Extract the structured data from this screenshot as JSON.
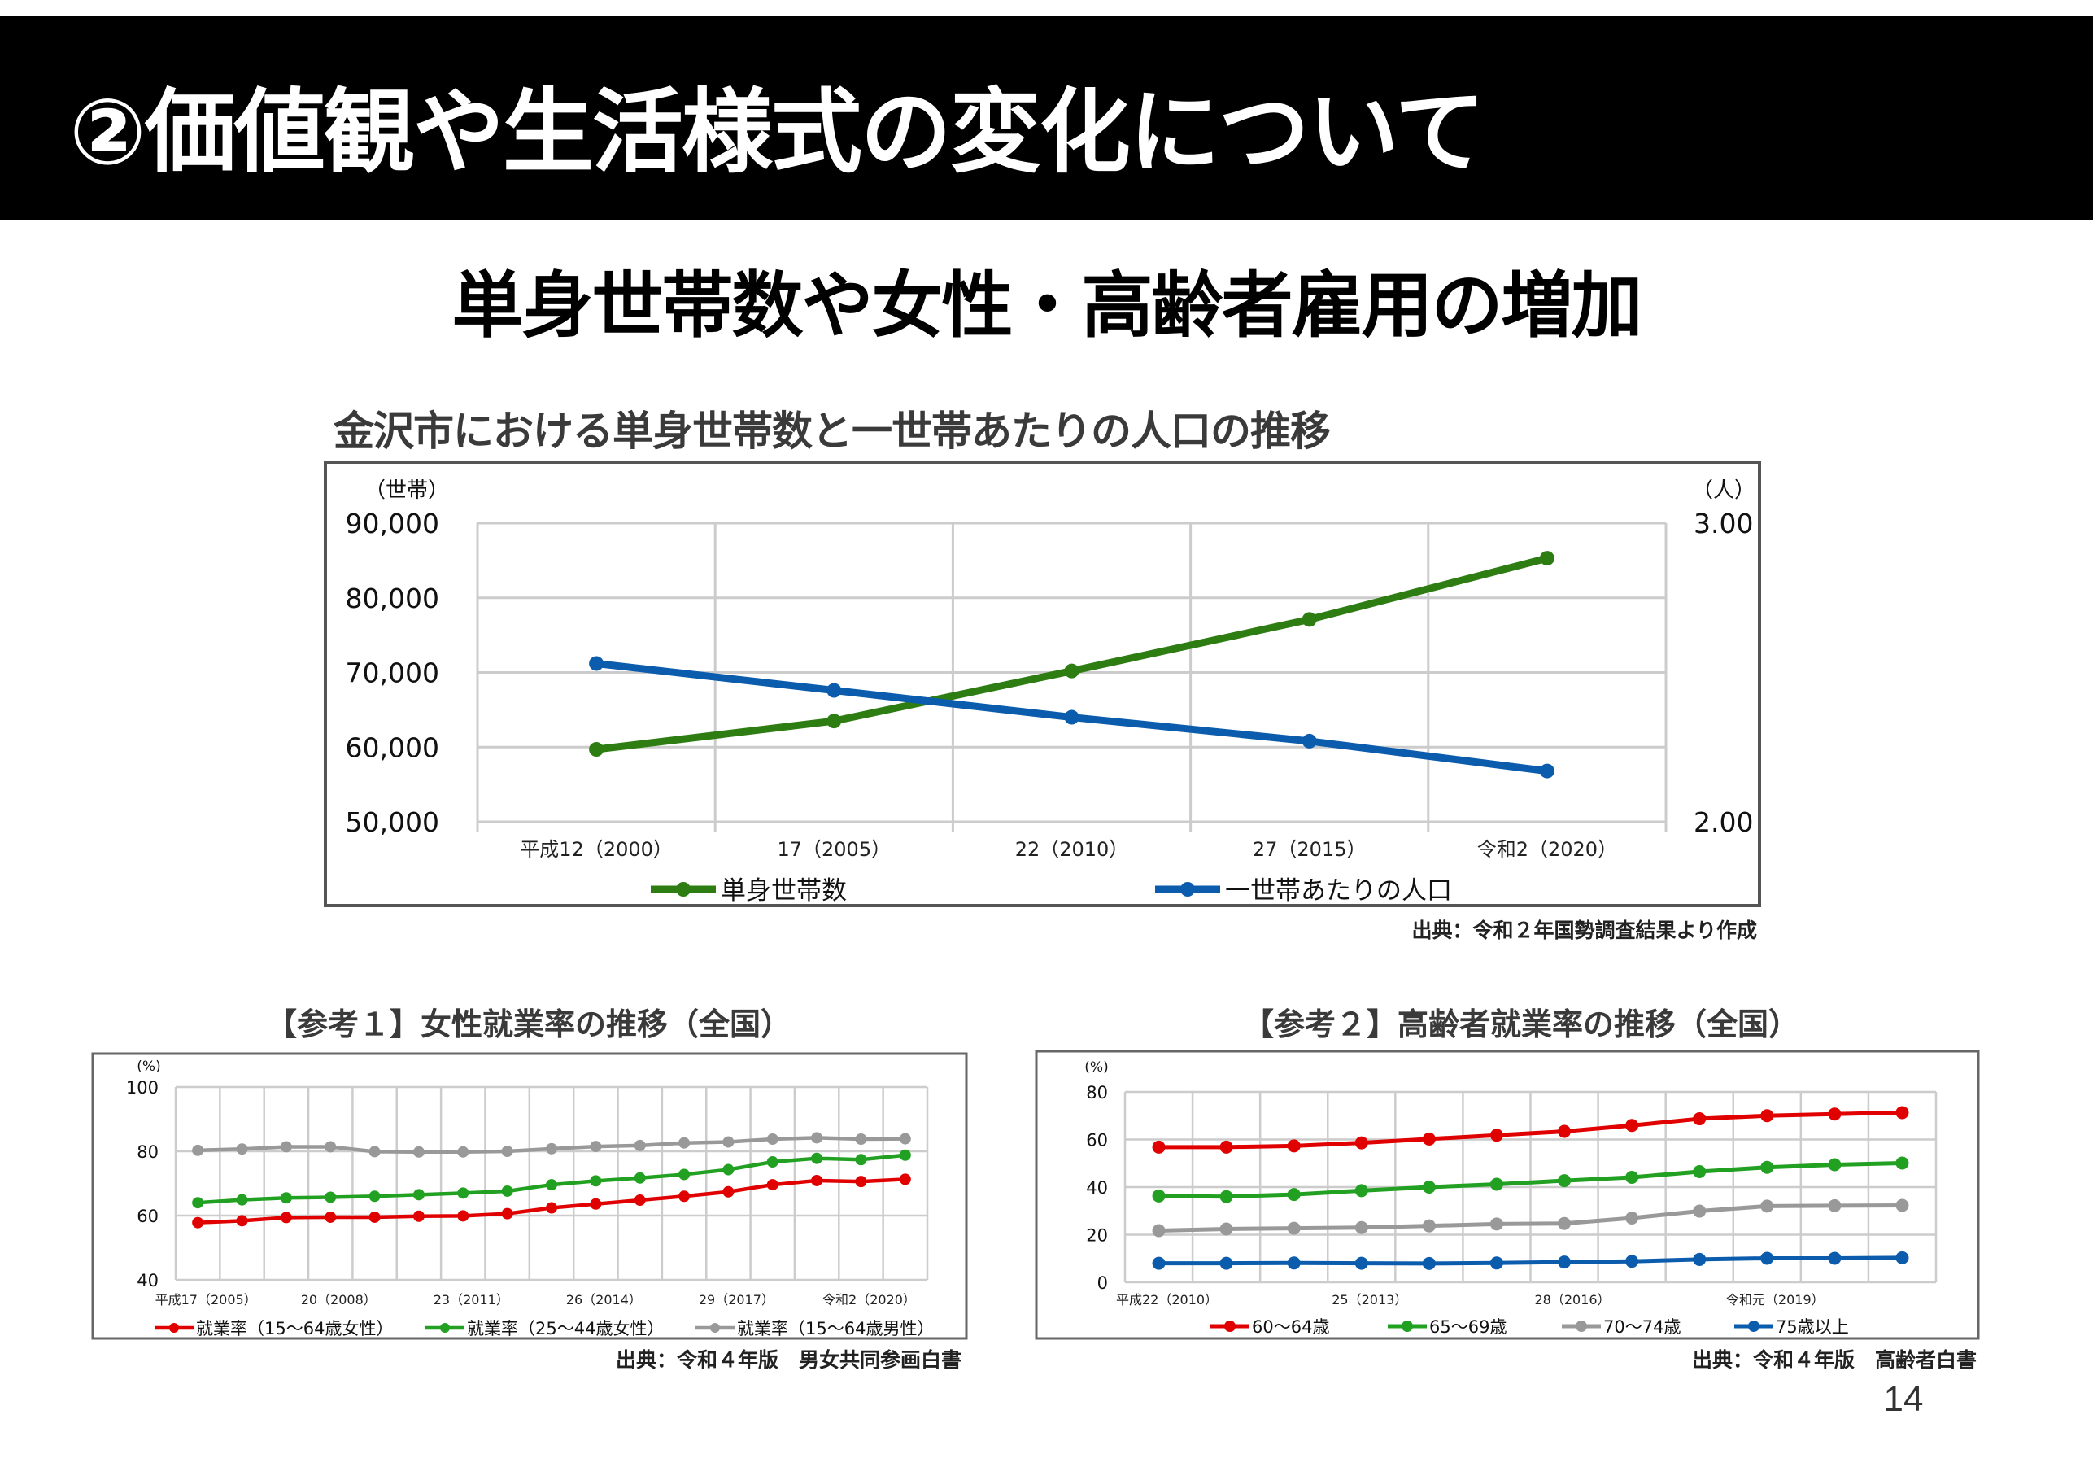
{
  "slide": {
    "title": "②価値観や生活様式の変化について",
    "subtitle": "単身世帯数や女性・高齢者雇用の増加",
    "page_number": "14"
  },
  "colors": {
    "green_dark": "#2e7d12",
    "blue": "#0b5cad",
    "red": "#e00000",
    "green": "#22a022",
    "gray": "#999999",
    "grid": "#cccccc",
    "frame": "#555555"
  },
  "chart_data": [
    {
      "id": "households",
      "type": "line",
      "title": "金沢市における単身世帯数と一世帯あたりの人口の推移",
      "categories": [
        "平成12（2000）",
        "17（2005）",
        "22（2010）",
        "27（2015）",
        "令和2（2020）"
      ],
      "y_left": {
        "unit_label": "（世帯）",
        "ylim": [
          50000,
          90000
        ],
        "ticks": [
          90000,
          80000,
          70000,
          60000,
          50000
        ],
        "tick_labels": [
          "90,000",
          "80,000",
          "70,000",
          "60,000",
          "50,000"
        ]
      },
      "y_right": {
        "unit_label": "（人）",
        "ylim": [
          2.0,
          3.0
        ],
        "ticks": [
          3.0,
          2.0
        ],
        "tick_labels": [
          "3.00",
          "2.00"
        ]
      },
      "grid": true,
      "legend_position": "bottom",
      "series": [
        {
          "name": "単身世帯数",
          "axis": "left",
          "color": "#2e7d12",
          "values": [
            59700,
            63500,
            70200,
            77100,
            85300
          ]
        },
        {
          "name": "一世帯あたりの人口",
          "axis": "right",
          "color": "#0b5cad",
          "values": [
            2.53,
            2.44,
            2.35,
            2.27,
            2.17
          ]
        }
      ],
      "source": "出典：令和２年国勢調査結果より作成"
    },
    {
      "id": "female",
      "type": "line",
      "title": "【参考１】女性就業率の推移（全国）",
      "y_unit_label": "(%)",
      "ylim": [
        40,
        100
      ],
      "ticks": [
        100,
        80,
        60,
        40
      ],
      "tick_labels": [
        "100",
        "80",
        "60",
        "40"
      ],
      "x": [
        2005,
        2006,
        2007,
        2008,
        2009,
        2010,
        2011,
        2012,
        2013,
        2014,
        2015,
        2016,
        2017,
        2018,
        2019,
        2020,
        2021
      ],
      "x_tick_labels": [
        {
          "at": 2005,
          "label": "平成17（2005）"
        },
        {
          "at": 2008,
          "label": "20（2008）"
        },
        {
          "at": 2011,
          "label": "23（2011）"
        },
        {
          "at": 2014,
          "label": "26（2014）"
        },
        {
          "at": 2017,
          "label": "29（2017）"
        },
        {
          "at": 2020,
          "label": "令和2（2020）"
        }
      ],
      "grid": true,
      "legend_position": "bottom",
      "series": [
        {
          "name": "就業率（15～64歳女性）",
          "color": "#e00000",
          "values": [
            57.8,
            58.4,
            59.4,
            59.5,
            59.5,
            59.8,
            59.9,
            60.6,
            62.4,
            63.6,
            64.8,
            66.0,
            67.4,
            69.6,
            70.9,
            70.6,
            71.3
          ]
        },
        {
          "name": "就業率（25～44歳女性）",
          "color": "#22a022",
          "values": [
            64.0,
            64.9,
            65.5,
            65.7,
            66.0,
            66.5,
            67.0,
            67.6,
            69.6,
            70.8,
            71.7,
            72.8,
            74.3,
            76.7,
            77.8,
            77.4,
            78.8
          ]
        },
        {
          "name": "就業率（15～64歳男性）",
          "color": "#999999",
          "values": [
            80.3,
            80.7,
            81.4,
            81.4,
            79.9,
            79.8,
            79.8,
            80.0,
            80.8,
            81.5,
            81.8,
            82.6,
            82.9,
            83.8,
            84.2,
            83.8,
            83.9
          ]
        }
      ],
      "source": "出典：令和４年版　男女共同参画白書"
    },
    {
      "id": "elderly",
      "type": "line",
      "title": "【参考２】高齢者就業率の推移（全国）",
      "y_unit_label": "(%)",
      "ylim": [
        0,
        80
      ],
      "ticks": [
        80,
        60,
        40,
        20,
        0
      ],
      "tick_labels": [
        "80",
        "60",
        "40",
        "20",
        "0"
      ],
      "x": [
        2010,
        2011,
        2012,
        2013,
        2014,
        2015,
        2016,
        2017,
        2018,
        2019,
        2020,
        2021
      ],
      "x_tick_labels": [
        {
          "at": 2010,
          "label": "平成22（2010）"
        },
        {
          "at": 2013,
          "label": "25（2013）"
        },
        {
          "at": 2016,
          "label": "28（2016）"
        },
        {
          "at": 2019,
          "label": "令和元（2019）"
        }
      ],
      "grid": true,
      "legend_position": "bottom",
      "series": [
        {
          "name": "60～64歳",
          "color": "#e00000",
          "values": [
            56.8,
            56.8,
            57.3,
            58.6,
            60.2,
            61.8,
            63.4,
            65.9,
            68.7,
            70.0,
            70.7,
            71.3
          ]
        },
        {
          "name": "65～69歳",
          "color": "#22a022",
          "values": [
            36.3,
            36.0,
            36.9,
            38.5,
            40.0,
            41.2,
            42.7,
            44.1,
            46.5,
            48.3,
            49.4,
            50.1
          ]
        },
        {
          "name": "70～74歳",
          "color": "#999999",
          "values": [
            21.7,
            22.4,
            22.7,
            23.0,
            23.7,
            24.5,
            24.7,
            27.0,
            29.9,
            32.0,
            32.2,
            32.3
          ]
        },
        {
          "name": "75歳以上",
          "color": "#0b5cad",
          "values": [
            8.0,
            8.0,
            8.1,
            8.0,
            7.9,
            8.1,
            8.5,
            8.8,
            9.6,
            10.1,
            10.1,
            10.3
          ]
        }
      ],
      "source": "出典：令和４年版　高齢者白書"
    }
  ]
}
